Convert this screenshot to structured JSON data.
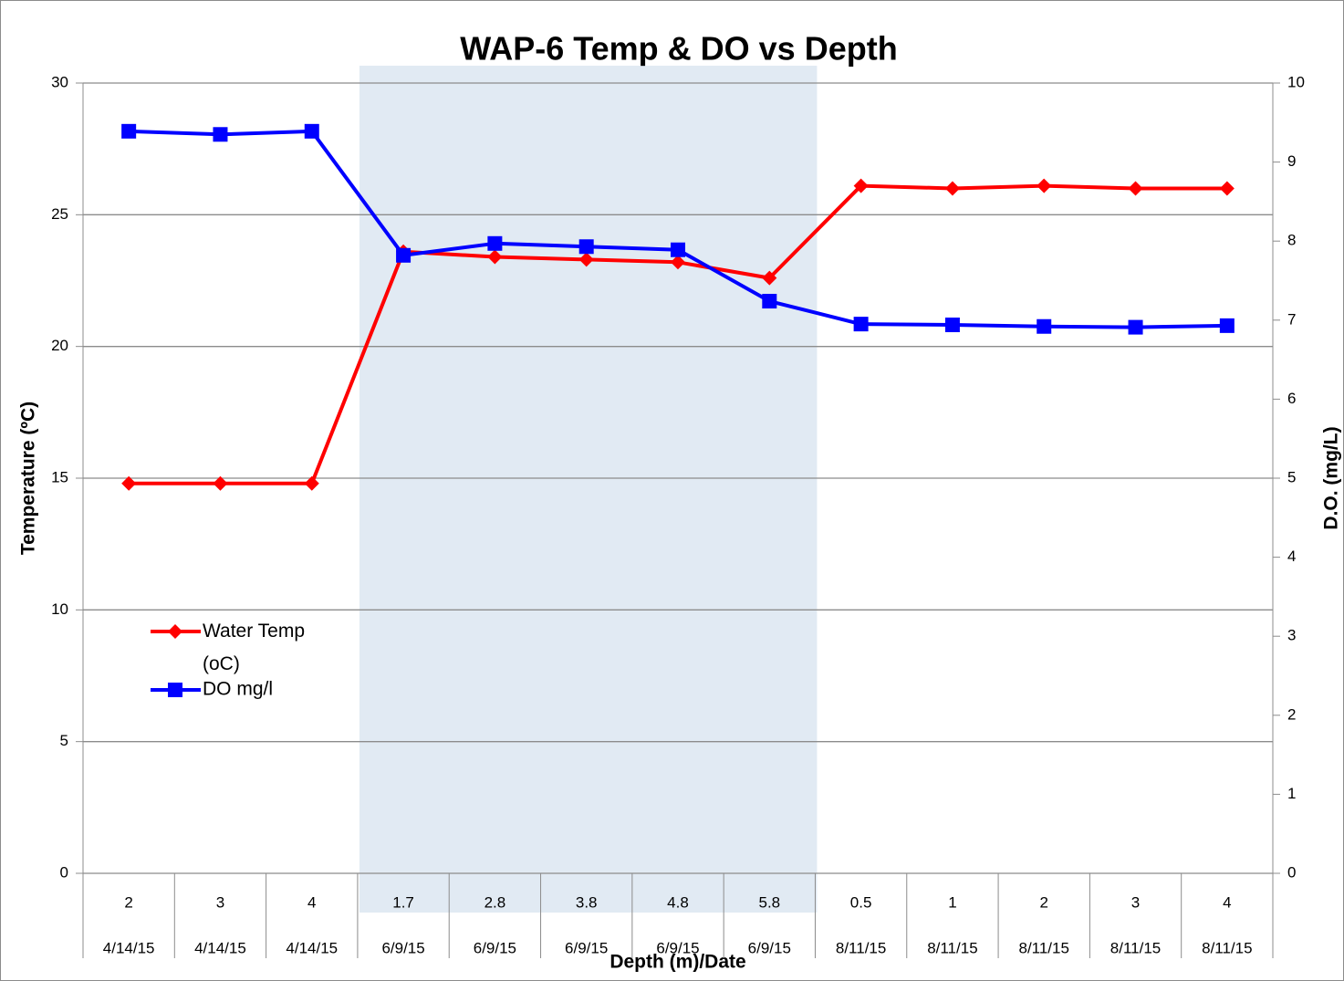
{
  "chart_data": {
    "type": "line",
    "title": "WAP-6 Temp & DO vs Depth",
    "x_label": "Depth (m)/Date",
    "y_label": "Temperature (ºC)",
    "y2_label": "D.O. (mg/L)",
    "categories": [
      "2",
      "3",
      "4",
      "1.7",
      "2.8",
      "3.8",
      "4.8",
      "5.8",
      "0.5",
      "1",
      "2",
      "3",
      "4"
    ],
    "dates": [
      "4/14/15",
      "4/14/15",
      "4/14/15",
      "6/9/15",
      "6/9/15",
      "6/9/15",
      "6/9/15",
      "6/9/15",
      "8/11/15",
      "8/11/15",
      "8/11/15",
      "8/11/15",
      "8/11/15"
    ],
    "series": [
      {
        "name": "Water Temp (oC)",
        "color": "#ff0000",
        "marker": "diamond",
        "values": [
          14.8,
          14.8,
          14.8,
          23.6,
          23.4,
          23.3,
          23.2,
          22.6,
          26.1,
          26.0,
          26.1,
          26.0,
          26.0
        ]
      },
      {
        "name": "DO mg/l",
        "color": "#0000ff",
        "marker": "square",
        "axis": "y2",
        "values": [
          9.39,
          9.35,
          9.39,
          7.82,
          7.97,
          7.93,
          7.89,
          7.24,
          6.95,
          6.94,
          6.92,
          6.91,
          6.93
        ]
      }
    ],
    "ylim": [
      0,
      30
    ],
    "yticks": [
      0,
      5,
      10,
      15,
      20,
      25,
      30
    ],
    "y2lim": [
      0,
      10
    ],
    "y2ticks": [
      0,
      1,
      2,
      3,
      4,
      5,
      6,
      7,
      8,
      9,
      10
    ],
    "grid": true,
    "legend": "left"
  }
}
